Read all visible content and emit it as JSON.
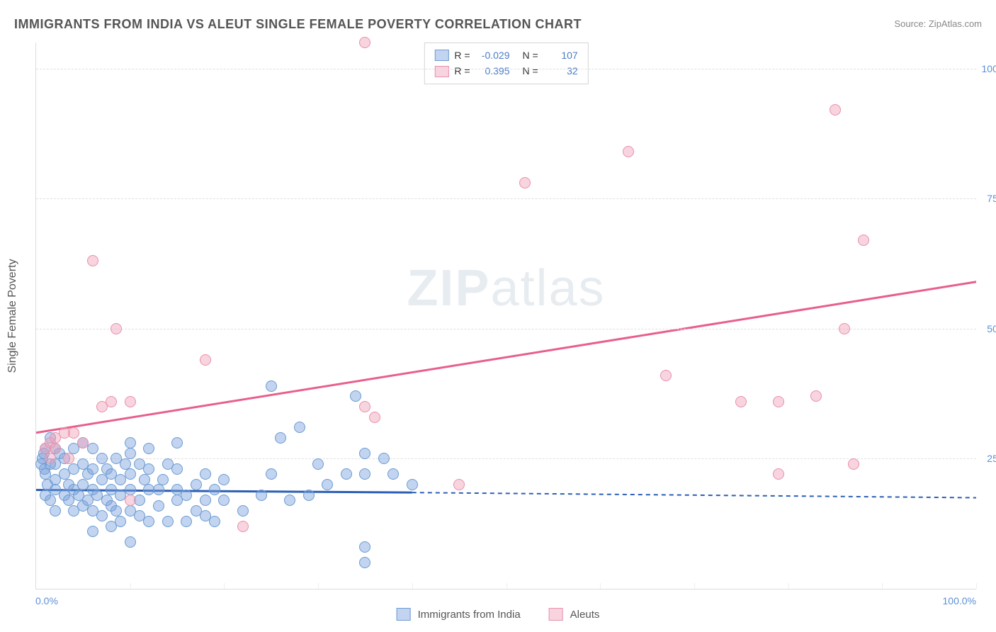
{
  "title": "IMMIGRANTS FROM INDIA VS ALEUT SINGLE FEMALE POVERTY CORRELATION CHART",
  "source": "Source: ZipAtlas.com",
  "watermark_bold": "ZIP",
  "watermark_light": "atlas",
  "y_axis_title": "Single Female Poverty",
  "chart": {
    "type": "scatter",
    "xlim": [
      0,
      100
    ],
    "ylim": [
      0,
      105
    ],
    "x_ticks": {
      "min_label": "0.0%",
      "max_label": "100.0%"
    },
    "y_ticks": [
      {
        "value": 25,
        "label": "25.0%"
      },
      {
        "value": 50,
        "label": "50.0%"
      },
      {
        "value": 75,
        "label": "75.0%"
      },
      {
        "value": 100,
        "label": "100.0%"
      }
    ],
    "x_grid_values": [
      10,
      20,
      30,
      40,
      50,
      60,
      70,
      80,
      90,
      100
    ],
    "background_color": "#ffffff",
    "grid_color": "#e0e0e0",
    "series": [
      {
        "name": "Immigrants from India",
        "fill": "rgba(120,160,220,0.45)",
        "stroke": "#6b9bd2",
        "line_color": "#2d5fb5",
        "R_label": "R =",
        "R": "-0.029",
        "N_label": "N =",
        "N": "107",
        "regression": {
          "x1": 0,
          "y1": 19,
          "x2": 40,
          "y2": 18.5,
          "extend_to": 100,
          "extend_y": 17.5
        },
        "points": [
          [
            0.5,
            24
          ],
          [
            0.7,
            25
          ],
          [
            0.8,
            26
          ],
          [
            0.9,
            23
          ],
          [
            1,
            22
          ],
          [
            1,
            27
          ],
          [
            1.2,
            20
          ],
          [
            1.5,
            24
          ],
          [
            1.5,
            29
          ],
          [
            1,
            18
          ],
          [
            1.5,
            17
          ],
          [
            2,
            19
          ],
          [
            2,
            21
          ],
          [
            2,
            24
          ],
          [
            2,
            27
          ],
          [
            2,
            15
          ],
          [
            2.5,
            26
          ],
          [
            3,
            18
          ],
          [
            3,
            22
          ],
          [
            3,
            25
          ],
          [
            3.5,
            17
          ],
          [
            3.5,
            20
          ],
          [
            4,
            15
          ],
          [
            4,
            19
          ],
          [
            4,
            23
          ],
          [
            4,
            27
          ],
          [
            4.5,
            18
          ],
          [
            5,
            16
          ],
          [
            5,
            20
          ],
          [
            5,
            24
          ],
          [
            5,
            28
          ],
          [
            5.5,
            17
          ],
          [
            5.5,
            22
          ],
          [
            6,
            11
          ],
          [
            6,
            15
          ],
          [
            6,
            19
          ],
          [
            6,
            23
          ],
          [
            6,
            27
          ],
          [
            6.5,
            18
          ],
          [
            7,
            14
          ],
          [
            7,
            21
          ],
          [
            7,
            25
          ],
          [
            7.5,
            17
          ],
          [
            7.5,
            23
          ],
          [
            8,
            12
          ],
          [
            8,
            16
          ],
          [
            8,
            19
          ],
          [
            8,
            22
          ],
          [
            8.5,
            15
          ],
          [
            8.5,
            25
          ],
          [
            9,
            13
          ],
          [
            9,
            18
          ],
          [
            9,
            21
          ],
          [
            9.5,
            24
          ],
          [
            10,
            9
          ],
          [
            10,
            15
          ],
          [
            10,
            19
          ],
          [
            10,
            22
          ],
          [
            10,
            26
          ],
          [
            10,
            28
          ],
          [
            11,
            14
          ],
          [
            11,
            17
          ],
          [
            11,
            24
          ],
          [
            11.5,
            21
          ],
          [
            12,
            13
          ],
          [
            12,
            19
          ],
          [
            12,
            23
          ],
          [
            12,
            27
          ],
          [
            13,
            16
          ],
          [
            13,
            19
          ],
          [
            13.5,
            21
          ],
          [
            14,
            13
          ],
          [
            14,
            24
          ],
          [
            15,
            17
          ],
          [
            15,
            19
          ],
          [
            15,
            23
          ],
          [
            15,
            28
          ],
          [
            16,
            18
          ],
          [
            16,
            13
          ],
          [
            17,
            15
          ],
          [
            17,
            20
          ],
          [
            18,
            14
          ],
          [
            18,
            17
          ],
          [
            18,
            22
          ],
          [
            19,
            19
          ],
          [
            19,
            13
          ],
          [
            20,
            17
          ],
          [
            20,
            21
          ],
          [
            22,
            15
          ],
          [
            24,
            18
          ],
          [
            25,
            22
          ],
          [
            25,
            39
          ],
          [
            26,
            29
          ],
          [
            27,
            17
          ],
          [
            28,
            31
          ],
          [
            29,
            18
          ],
          [
            30,
            24
          ],
          [
            31,
            20
          ],
          [
            33,
            22
          ],
          [
            34,
            37
          ],
          [
            35,
            26
          ],
          [
            35,
            22
          ],
          [
            35,
            8
          ],
          [
            35,
            5
          ],
          [
            37,
            25
          ],
          [
            38,
            22
          ],
          [
            40,
            20
          ]
        ]
      },
      {
        "name": "Aleuts",
        "fill": "rgba(240,160,185,0.45)",
        "stroke": "#e98fab",
        "line_color": "#e85f8c",
        "R_label": "R =",
        "R": "0.395",
        "N_label": "N =",
        "N": "32",
        "regression": {
          "x1": 0,
          "y1": 30,
          "x2": 100,
          "y2": 59
        },
        "points": [
          [
            1,
            27
          ],
          [
            1.5,
            28
          ],
          [
            1.5,
            25
          ],
          [
            2,
            27
          ],
          [
            2,
            29
          ],
          [
            3,
            30
          ],
          [
            3.5,
            25
          ],
          [
            4,
            30
          ],
          [
            5,
            28
          ],
          [
            6,
            63
          ],
          [
            7,
            35
          ],
          [
            8,
            36
          ],
          [
            8.5,
            50
          ],
          [
            10,
            36
          ],
          [
            10,
            17
          ],
          [
            18,
            44
          ],
          [
            22,
            12
          ],
          [
            35,
            105
          ],
          [
            35,
            35
          ],
          [
            36,
            33
          ],
          [
            45,
            20
          ],
          [
            52,
            78
          ],
          [
            63,
            84
          ],
          [
            67,
            41
          ],
          [
            75,
            36
          ],
          [
            79,
            22
          ],
          [
            79,
            36
          ],
          [
            83,
            37
          ],
          [
            85,
            92
          ],
          [
            86,
            50
          ],
          [
            87,
            24
          ],
          [
            88,
            67
          ]
        ]
      }
    ]
  },
  "bottom_legend": [
    {
      "label": "Immigrants from India",
      "fill": "rgba(120,160,220,0.45)",
      "stroke": "#6b9bd2"
    },
    {
      "label": "Aleuts",
      "fill": "rgba(240,160,185,0.45)",
      "stroke": "#e98fab"
    }
  ]
}
